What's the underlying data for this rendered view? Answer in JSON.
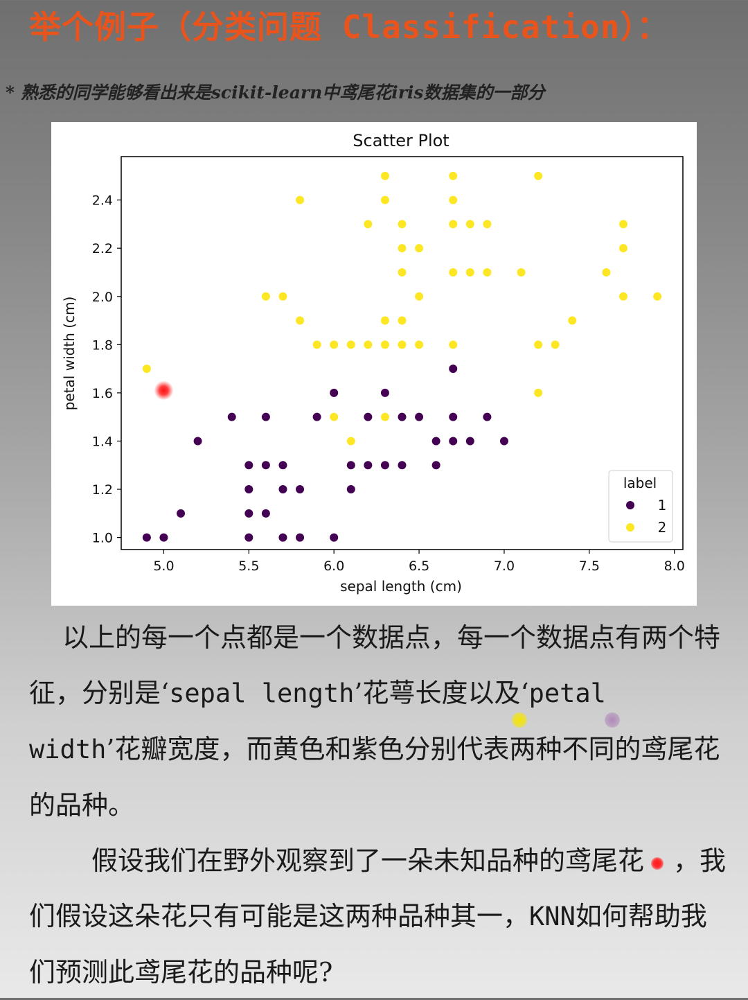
{
  "header": {
    "title": "举个例子（分类问题 Classification）：",
    "note": "* 熟悉的同学能够看出来是scikit-learn中鸢尾花iris数据集的一部分"
  },
  "chart_data": {
    "type": "scatter",
    "title": "Scatter Plot",
    "xlabel": "sepal length (cm)",
    "ylabel": "petal width (cm)",
    "xlim": [
      4.75,
      8.05
    ],
    "ylim": [
      0.95,
      2.58
    ],
    "xticks": [
      "5.0",
      "5.5",
      "6.0",
      "6.5",
      "7.0",
      "7.5",
      "8.0"
    ],
    "yticks": [
      "1.0",
      "1.2",
      "1.4",
      "1.6",
      "1.8",
      "2.0",
      "2.2",
      "2.4"
    ],
    "legend": {
      "title": "label",
      "position": "lower-right",
      "labels": [
        "1",
        "2"
      ]
    },
    "colors": {
      "1": "#440154",
      "2": "#fde725",
      "unknown": "#ff2020"
    },
    "series": [
      {
        "name": "1",
        "color": "#440154",
        "points": [
          [
            4.9,
            1.0
          ],
          [
            5.0,
            1.0
          ],
          [
            5.1,
            1.1
          ],
          [
            5.2,
            1.4
          ],
          [
            5.4,
            1.5
          ],
          [
            5.5,
            1.3
          ],
          [
            5.5,
            1.2
          ],
          [
            5.5,
            1.1
          ],
          [
            5.5,
            1.0
          ],
          [
            5.6,
            1.3
          ],
          [
            5.6,
            1.5
          ],
          [
            5.6,
            1.1
          ],
          [
            5.7,
            1.3
          ],
          [
            5.7,
            1.2
          ],
          [
            5.7,
            1.0
          ],
          [
            5.8,
            1.2
          ],
          [
            5.8,
            1.0
          ],
          [
            5.9,
            1.5
          ],
          [
            6.0,
            1.6
          ],
          [
            6.0,
            1.0
          ],
          [
            6.1,
            1.3
          ],
          [
            6.1,
            1.2
          ],
          [
            6.2,
            1.5
          ],
          [
            6.2,
            1.3
          ],
          [
            6.3,
            1.6
          ],
          [
            6.3,
            1.3
          ],
          [
            6.4,
            1.5
          ],
          [
            6.4,
            1.3
          ],
          [
            6.5,
            1.5
          ],
          [
            6.6,
            1.4
          ],
          [
            6.6,
            1.3
          ],
          [
            6.7,
            1.7
          ],
          [
            6.7,
            1.5
          ],
          [
            6.7,
            1.4
          ],
          [
            6.8,
            1.4
          ],
          [
            6.9,
            1.5
          ],
          [
            7.0,
            1.4
          ]
        ]
      },
      {
        "name": "2",
        "color": "#fde725",
        "points": [
          [
            4.9,
            1.7
          ],
          [
            5.6,
            2.0
          ],
          [
            5.7,
            2.0
          ],
          [
            5.8,
            2.4
          ],
          [
            5.8,
            1.9
          ],
          [
            5.9,
            1.8
          ],
          [
            6.0,
            1.8
          ],
          [
            6.0,
            1.5
          ],
          [
            6.1,
            1.8
          ],
          [
            6.1,
            1.4
          ],
          [
            6.2,
            2.3
          ],
          [
            6.2,
            1.8
          ],
          [
            6.3,
            2.5
          ],
          [
            6.3,
            2.4
          ],
          [
            6.3,
            1.9
          ],
          [
            6.3,
            1.8
          ],
          [
            6.3,
            1.5
          ],
          [
            6.4,
            2.3
          ],
          [
            6.4,
            2.2
          ],
          [
            6.4,
            2.1
          ],
          [
            6.4,
            1.9
          ],
          [
            6.4,
            1.8
          ],
          [
            6.5,
            2.2
          ],
          [
            6.5,
            2.0
          ],
          [
            6.5,
            1.8
          ],
          [
            6.7,
            2.5
          ],
          [
            6.7,
            2.4
          ],
          [
            6.7,
            2.3
          ],
          [
            6.7,
            2.1
          ],
          [
            6.7,
            1.8
          ],
          [
            6.8,
            2.3
          ],
          [
            6.8,
            2.1
          ],
          [
            6.9,
            2.3
          ],
          [
            6.9,
            2.1
          ],
          [
            7.1,
            2.1
          ],
          [
            7.2,
            2.5
          ],
          [
            7.2,
            1.8
          ],
          [
            7.2,
            1.6
          ],
          [
            7.3,
            1.8
          ],
          [
            7.4,
            1.9
          ],
          [
            7.6,
            2.1
          ],
          [
            7.7,
            2.3
          ],
          [
            7.7,
            2.2
          ],
          [
            7.7,
            2.0
          ],
          [
            7.9,
            2.0
          ]
        ]
      }
    ],
    "unknown_point": [
      5.0,
      1.61
    ]
  },
  "body": {
    "para1_a": "以上的每一个点都是一个数据点，每一个数据点有两个特征，分别是‘",
    "para1_b": "sepal length",
    "para1_c": "’花萼长度以及‘",
    "para1_d": "petal width",
    "para1_e": "’花瓣宽度，而黄色和紫色分别代表两种不同的鸢尾花的品种。",
    "para2_a": "假设我们在野外观察到了一朵未知品种的鸢尾花",
    "para2_b": "，我们假设这朵花只有可能是这两种品种其一，",
    "para2_c": "KNN",
    "para2_d": "如何帮助我们预测此鸢尾花的品种呢?"
  }
}
